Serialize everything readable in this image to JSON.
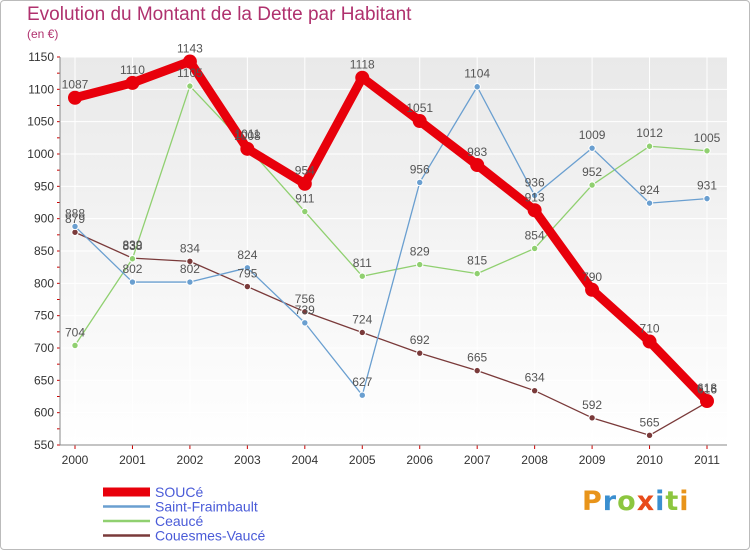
{
  "chart_data": {
    "type": "line",
    "title": "Evolution du Montant de la Dette par Habitant",
    "ylabel": "(en €)",
    "xlabel": "",
    "x": [
      "2000",
      "2001",
      "2002",
      "2003",
      "2004",
      "2005",
      "2006",
      "2007",
      "2008",
      "2009",
      "2010",
      "2011"
    ],
    "ylim": [
      550,
      1150
    ],
    "yticks": [
      550,
      600,
      650,
      700,
      750,
      800,
      850,
      900,
      950,
      1000,
      1050,
      1100,
      1150
    ],
    "grid": true,
    "legend": "bottom-left",
    "series": [
      {
        "name": "SOUCé",
        "color": "#e8000b",
        "values": [
          1087,
          1110,
          1143,
          1008,
          954,
          1118,
          1051,
          983,
          913,
          790,
          710,
          618
        ]
      },
      {
        "name": "Saint-Fraimbault",
        "color": "#6a9fd0",
        "values": [
          888,
          802,
          802,
          824,
          739,
          627,
          956,
          1104,
          936,
          1009,
          924,
          931
        ]
      },
      {
        "name": "Ceaucé",
        "color": "#90d070",
        "values": [
          704,
          838,
          1105,
          1011,
          911,
          811,
          829,
          815,
          854,
          952,
          1012,
          1005
        ]
      },
      {
        "name": "Couesmes-Vaucé",
        "color": "#7a3a3a",
        "values": [
          879,
          839,
          834,
          795,
          756,
          724,
          692,
          665,
          634,
          592,
          565,
          616
        ]
      }
    ]
  },
  "logo": {
    "text": "Proxiti",
    "colors": [
      "#e8941a",
      "#3a8fd0",
      "#8cc63f",
      "#e84b1a",
      "#3a8fd0",
      "#8cc63f",
      "#e8941a"
    ]
  }
}
